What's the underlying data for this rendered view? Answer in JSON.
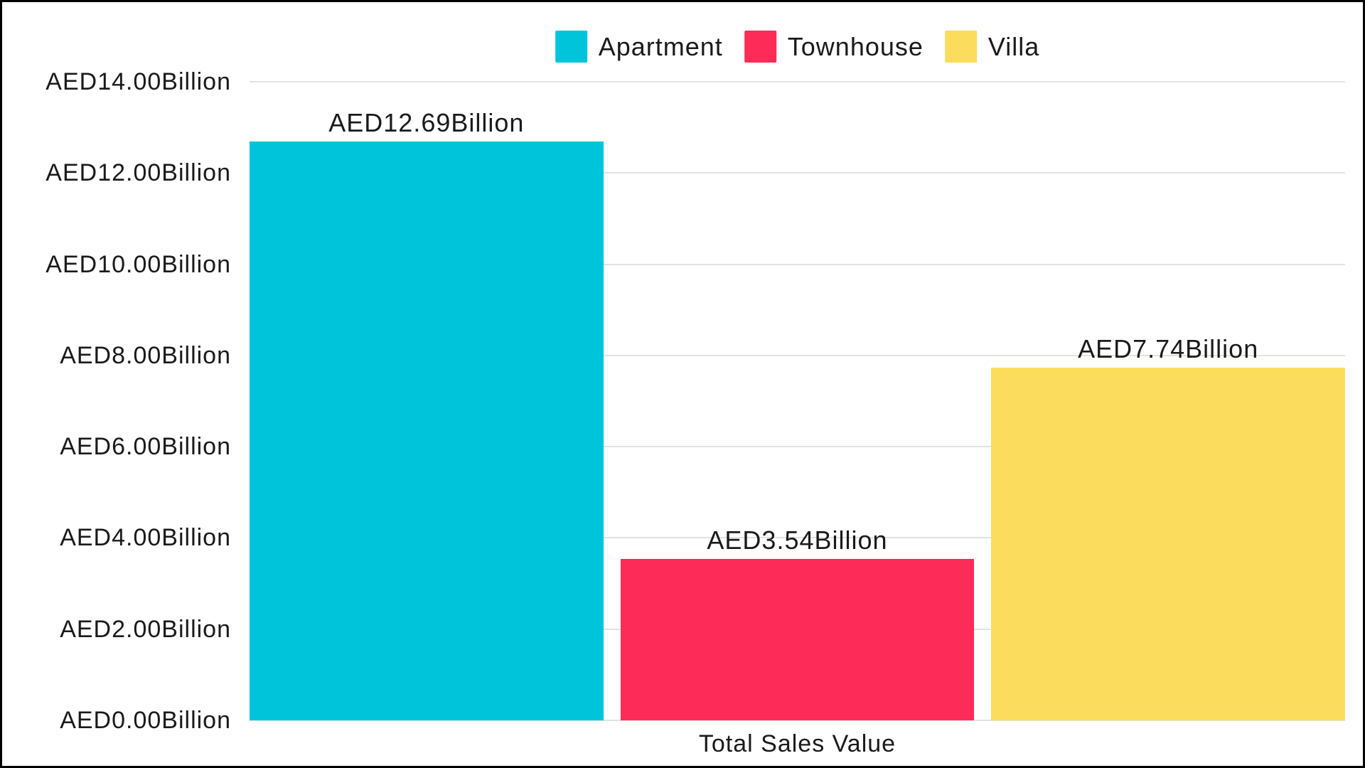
{
  "page": {
    "background": "#ffffff",
    "frame_border_color": "#000000",
    "text_color": "#1a1a1a",
    "gridline_color": "#e2e2e2"
  },
  "chart_data": {
    "type": "bar",
    "title": "",
    "xlabel": "Total Sales Value",
    "ylabel": "",
    "unit": "AED Billion",
    "categories": [
      "Total Sales Value"
    ],
    "series": [
      {
        "name": "Apartment",
        "values": [
          12.69
        ],
        "data_label": "AED12.69Billion",
        "color": "#00c5da"
      },
      {
        "name": "Townhouse",
        "values": [
          3.54
        ],
        "data_label": "AED3.54Billion",
        "color": "#fc2b57"
      },
      {
        "name": "Villa",
        "values": [
          7.74
        ],
        "data_label": "AED7.74Billion",
        "color": "#fcdc5c"
      }
    ],
    "y_axis": {
      "min": 0,
      "max": 14,
      "tick_step": 2,
      "ticks": [
        14,
        12,
        10,
        8,
        6,
        4,
        2,
        0
      ],
      "tick_labels": [
        "AED14.00Billion",
        "AED12.00Billion",
        "AED10.00Billion",
        "AED8.00Billion",
        "AED6.00Billion",
        "AED4.00Billion",
        "AED2.00Billion",
        "AED0.00Billion"
      ]
    },
    "grid": true,
    "legend_position": "top"
  }
}
